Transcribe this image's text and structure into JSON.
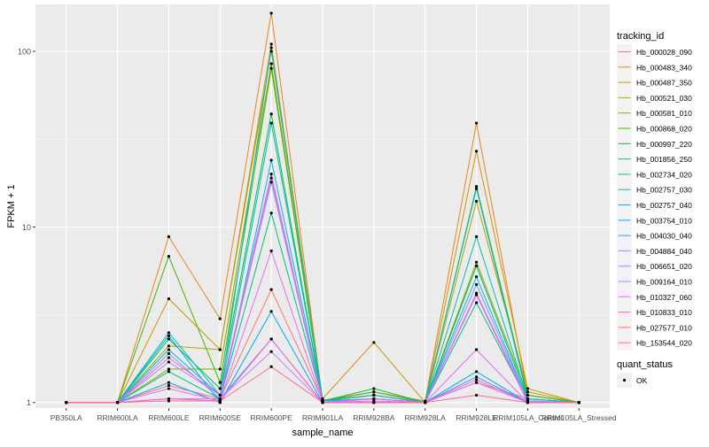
{
  "chart_data": {
    "type": "line",
    "xlabel": "sample_name",
    "ylabel": "FPKM + 1",
    "y_scale": "log10",
    "ylim": [
      0.93,
      185
    ],
    "y_ticks": [
      1,
      10,
      100
    ],
    "y_tick_labels": [
      "1",
      "10",
      "100"
    ],
    "categories": [
      "PB350LA",
      "RRIM600LA",
      "RRIM600LE",
      "RRIM600SE",
      "RRIM600PE",
      "RRIM901LA",
      "RRIM928BA",
      "RRIM928LA",
      "RRIM928LE",
      "RRIM105LA_Control",
      "RRIM105LA_Stressed"
    ],
    "legend_title": "tracking_id",
    "legend2_title": "quant_status",
    "legend2_entries": [
      {
        "label": "OK",
        "symbol": "point",
        "color": "#000000"
      }
    ],
    "series": [
      {
        "name": "Hb_000028_090",
        "color": "#F8766D",
        "values": [
          1,
          1,
          1.25,
          1.05,
          4.4,
          1.03,
          1.1,
          1.0,
          1.3,
          1.05,
          1
        ]
      },
      {
        "name": "Hb_000483_340",
        "color": "#E7851E",
        "values": [
          1,
          1,
          8.8,
          3.0,
          165,
          1.03,
          1.15,
          1.02,
          39,
          1.1,
          1
        ]
      },
      {
        "name": "Hb_000487_350",
        "color": "#D09400",
        "values": [
          1,
          1,
          3.9,
          2.0,
          110,
          1.05,
          2.2,
          1.0,
          27,
          1.2,
          1
        ]
      },
      {
        "name": "Hb_000521_030",
        "color": "#B2A100",
        "values": [
          1,
          1,
          2.1,
          2.0,
          100,
          1.03,
          1.1,
          1.0,
          14,
          1.15,
          1
        ]
      },
      {
        "name": "Hb_000581_010",
        "color": "#89AC00",
        "values": [
          1,
          1,
          1.55,
          1.55,
          85,
          1.02,
          1.1,
          1.0,
          6.3,
          1.1,
          1
        ]
      },
      {
        "name": "Hb_000868_020",
        "color": "#45B500",
        "values": [
          1,
          1,
          6.8,
          1.3,
          80,
          1.02,
          1.15,
          1.0,
          17,
          1.1,
          1
        ]
      },
      {
        "name": "Hb_000997_220",
        "color": "#00BC51",
        "values": [
          1,
          1,
          2.3,
          1.2,
          44,
          1.02,
          1.2,
          1.0,
          6.0,
          1.05,
          1
        ]
      },
      {
        "name": "Hb_001856_250",
        "color": "#00C087",
        "values": [
          1,
          1,
          1.5,
          1.05,
          12,
          1.02,
          1.05,
          1.0,
          3.7,
          1.02,
          1
        ]
      },
      {
        "name": "Hb_002734_020",
        "color": "#00C0B2",
        "values": [
          1,
          1,
          2.5,
          1.1,
          39,
          1.02,
          1.1,
          1.0,
          8.8,
          1.05,
          1
        ]
      },
      {
        "name": "Hb_002757_030",
        "color": "#00BCD6",
        "values": [
          1,
          1,
          2.0,
          1.1,
          105,
          1.02,
          1.1,
          1.0,
          16.5,
          1.05,
          1
        ]
      },
      {
        "name": "Hb_002757_040",
        "color": "#00B3F2",
        "values": [
          1,
          1,
          2.4,
          1.0,
          24,
          1.02,
          1.05,
          1.0,
          5.2,
          1.02,
          1
        ]
      },
      {
        "name": "Hb_003754_010",
        "color": "#00A6FF",
        "values": [
          1,
          1,
          1.3,
          1.0,
          3.3,
          1.0,
          1.05,
          1.0,
          1.5,
          1.0,
          1
        ]
      },
      {
        "name": "Hb_004030_040",
        "color": "#29A3FF",
        "values": [
          1,
          1,
          1.05,
          1.05,
          2.3,
          1.0,
          1.0,
          1.0,
          1.4,
          1.0,
          1
        ]
      },
      {
        "name": "Hb_004884_040",
        "color": "#7997FF",
        "values": [
          1,
          1,
          1.9,
          1.05,
          19,
          1.0,
          1.05,
          1.0,
          4.7,
          1.02,
          1
        ]
      },
      {
        "name": "Hb_006651_020",
        "color": "#A58AFF",
        "values": [
          1,
          1,
          1.7,
          1.1,
          18,
          1.0,
          1.05,
          1.0,
          4.2,
          1.02,
          1
        ]
      },
      {
        "name": "Hb_009164_010",
        "color": "#C77CFF",
        "values": [
          1,
          1,
          1.05,
          1.05,
          1.95,
          1.0,
          1.0,
          1.0,
          1.3,
          1.0,
          1
        ]
      },
      {
        "name": "Hb_010327_060",
        "color": "#E36EF6",
        "values": [
          1,
          1,
          1.2,
          1.02,
          7.3,
          1.0,
          1.02,
          1.0,
          2.0,
          1.0,
          1
        ]
      },
      {
        "name": "Hb_010833_010",
        "color": "#F564E3",
        "values": [
          1,
          1,
          1.8,
          1.1,
          20,
          1.0,
          1.05,
          1.0,
          4.1,
          1.0,
          1
        ]
      },
      {
        "name": "Hb_027577_010",
        "color": "#FF61C9",
        "values": [
          1,
          1,
          1.05,
          1.02,
          2.3,
          1.0,
          1.0,
          1.0,
          1.35,
          1.0,
          1
        ]
      },
      {
        "name": "Hb_153544_020",
        "color": "#FF6C91",
        "values": [
          1,
          1,
          1.02,
          1.02,
          1.6,
          1.0,
          1.0,
          1.0,
          1.1,
          1.0,
          1
        ]
      }
    ],
    "grid": true,
    "legend_position": "right",
    "colors": {
      "panel_bg": "#EBEBEB",
      "grid_major": "#FFFFFF",
      "point": "#000000",
      "axis_text": "#4D4D4D",
      "title_text": "#000000"
    }
  }
}
